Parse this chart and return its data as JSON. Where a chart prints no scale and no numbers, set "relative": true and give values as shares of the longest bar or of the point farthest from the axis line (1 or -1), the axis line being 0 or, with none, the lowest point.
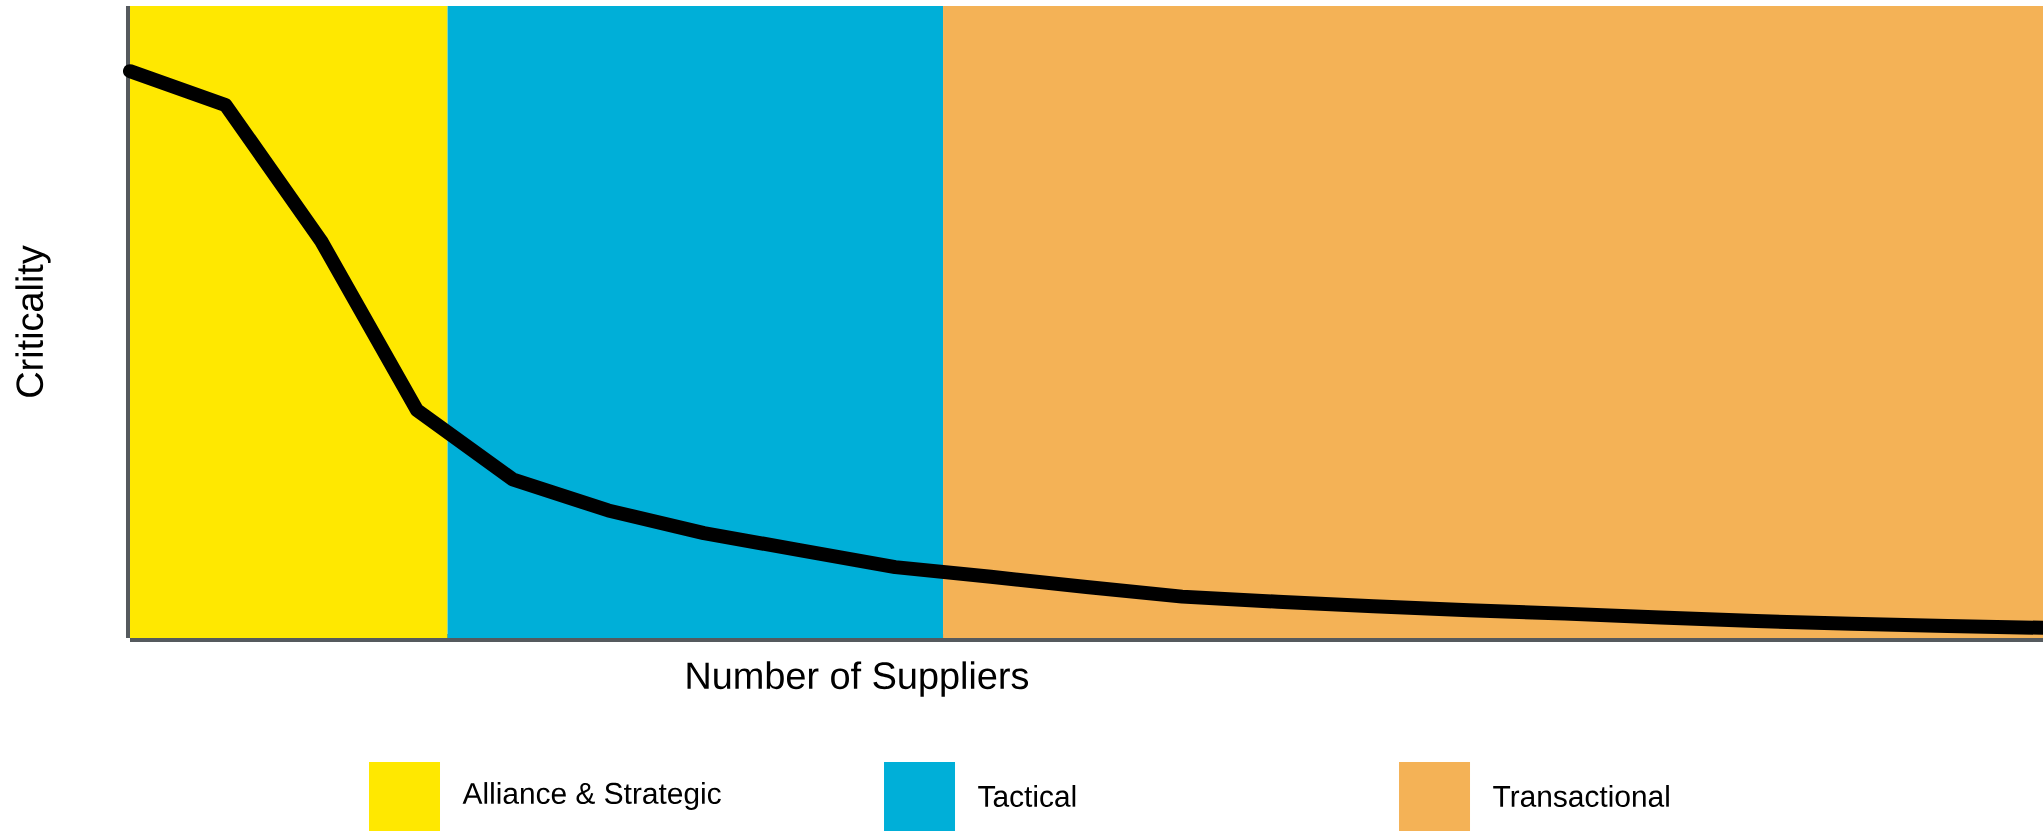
{
  "chart_data": {
    "type": "line",
    "relative": true,
    "xlabel": "Number of Suppliers",
    "ylabel": "Criticality",
    "line_style": "solid",
    "marker": "none",
    "categories": [
      null,
      null,
      null,
      null,
      null,
      null,
      null,
      null,
      null,
      null,
      null,
      null,
      null,
      null,
      null,
      null,
      null,
      null,
      null,
      null,
      null
    ],
    "series": [
      {
        "color": "#000000",
        "values": [
          1.0,
          0.94,
          0.7,
          0.402,
          0.28,
          0.225,
          0.185,
          0.155,
          0.125,
          0.108,
          0.09,
          0.073,
          0.064,
          0.056,
          0.049,
          0.043,
          0.036,
          0.03,
          0.025,
          0.021,
          0.018
        ]
      }
    ],
    "annotations": [
      "Alliance & Strategic",
      "Tactical",
      "Transactional"
    ]
  }
}
